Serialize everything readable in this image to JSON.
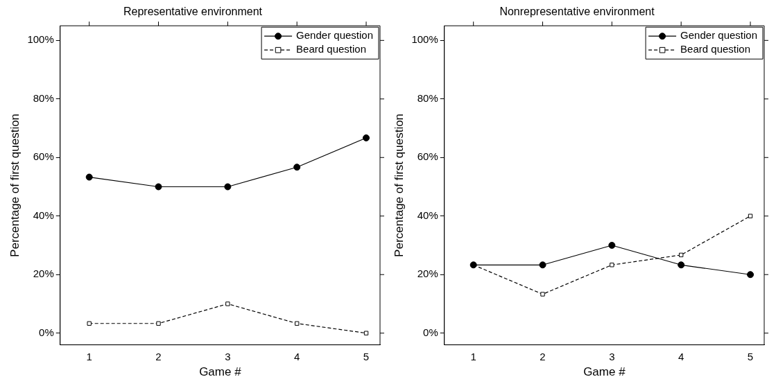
{
  "chart_data": [
    {
      "type": "line",
      "title": "Representative environment",
      "xlabel": "Game #",
      "ylabel": "Percentage of first question",
      "x": [
        1,
        2,
        3,
        4,
        5
      ],
      "xlim": [
        0.58,
        5.2
      ],
      "xticks": [
        1,
        2,
        3,
        4,
        5
      ],
      "ylim": [
        -4,
        105
      ],
      "yticks": [
        {
          "value": 0,
          "label": "0%"
        },
        {
          "value": 20,
          "label": "20%"
        },
        {
          "value": 40,
          "label": "40%"
        },
        {
          "value": 60,
          "label": "60%"
        },
        {
          "value": 80,
          "label": "80%"
        },
        {
          "value": 100,
          "label": "100%"
        }
      ],
      "grid": false,
      "legend": "top right",
      "series": [
        {
          "name": "Gender question",
          "color": "#000000",
          "values": [
            53.3,
            50,
            50,
            56.7,
            66.7
          ],
          "marker": "circle",
          "line_style": "solid"
        },
        {
          "name": "Beard question",
          "color": "#000000",
          "values": [
            3.3,
            3.3,
            10,
            3.3,
            0
          ],
          "marker": "square",
          "line_style": "dashed"
        }
      ]
    },
    {
      "type": "line",
      "title": "Nonrepresentative environment",
      "xlabel": "Game #",
      "ylabel": "Percentage of first question",
      "x": [
        1,
        2,
        3,
        4,
        5
      ],
      "xlim": [
        0.58,
        5.2
      ],
      "xticks": [
        1,
        2,
        3,
        4,
        5
      ],
      "ylim": [
        -4,
        105
      ],
      "yticks": [
        {
          "value": 0,
          "label": "0%"
        },
        {
          "value": 20,
          "label": "20%"
        },
        {
          "value": 40,
          "label": "40%"
        },
        {
          "value": 60,
          "label": "60%"
        },
        {
          "value": 80,
          "label": "80%"
        },
        {
          "value": 100,
          "label": "100%"
        }
      ],
      "grid": false,
      "legend": "top right",
      "series": [
        {
          "name": "Gender question",
          "color": "#000000",
          "values": [
            23.3,
            23.3,
            30,
            23.3,
            20
          ],
          "marker": "circle",
          "line_style": "solid"
        },
        {
          "name": "Beard question",
          "color": "#000000",
          "values": [
            23.3,
            13.3,
            23.3,
            26.7,
            40
          ],
          "marker": "square",
          "line_style": "dashed"
        }
      ]
    }
  ]
}
